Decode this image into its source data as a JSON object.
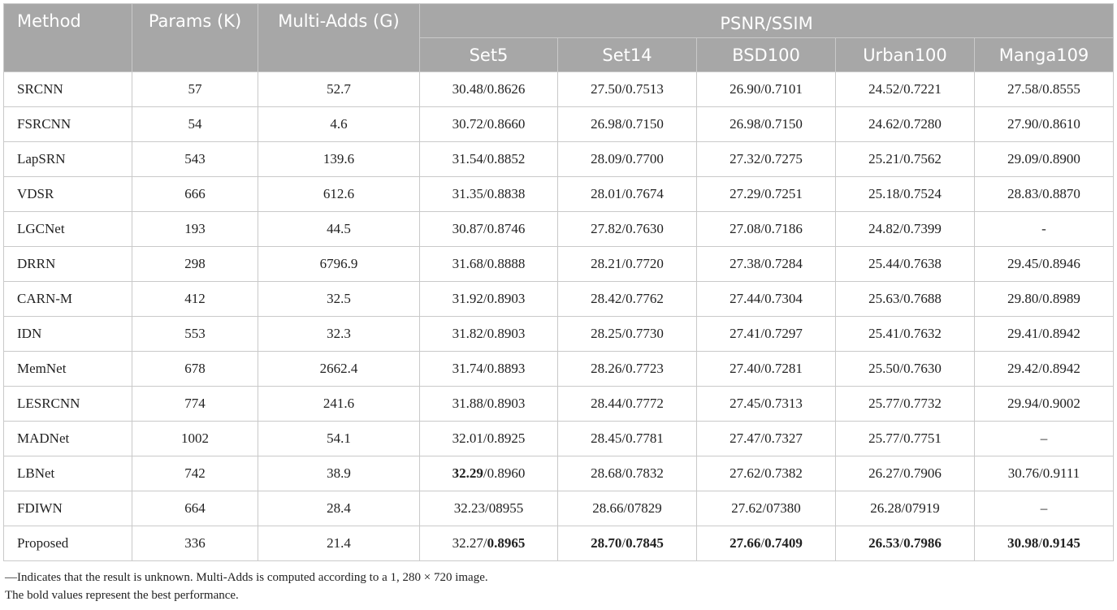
{
  "headers": {
    "method": "Method",
    "params": "Params (K)",
    "multiadds": "Multi-Adds (G)",
    "group": "PSNR/SSIM",
    "datasets": [
      "Set5",
      "Set14",
      "BSD100",
      "Urban100",
      "Manga109"
    ]
  },
  "rows": [
    {
      "method": "SRCNN",
      "params": "57",
      "multiadds": "52.7",
      "cells": [
        {
          "psnr": "30.48",
          "ssim": "0.8626"
        },
        {
          "psnr": "27.50",
          "ssim": "0.7513"
        },
        {
          "psnr": "26.90",
          "ssim": "0.7101"
        },
        {
          "psnr": "24.52",
          "ssim": "0.7221"
        },
        {
          "psnr": "27.58",
          "ssim": "0.8555"
        }
      ]
    },
    {
      "method": "FSRCNN",
      "params": "54",
      "multiadds": "4.6",
      "cells": [
        {
          "psnr": "30.72",
          "ssim": "0.8660"
        },
        {
          "psnr": "26.98",
          "ssim": "0.7150"
        },
        {
          "psnr": "26.98",
          "ssim": "0.7150"
        },
        {
          "psnr": "24.62",
          "ssim": "0.7280"
        },
        {
          "psnr": "27.90",
          "ssim": "0.8610"
        }
      ]
    },
    {
      "method": "LapSRN",
      "params": "543",
      "multiadds": "139.6",
      "cells": [
        {
          "psnr": "31.54",
          "ssim": "0.8852"
        },
        {
          "psnr": "28.09",
          "ssim": "0.7700"
        },
        {
          "psnr": "27.32",
          "ssim": "0.7275"
        },
        {
          "psnr": "25.21",
          "ssim": "0.7562"
        },
        {
          "psnr": "29.09",
          "ssim": "0.8900"
        }
      ]
    },
    {
      "method": "VDSR",
      "params": "666",
      "multiadds": "612.6",
      "cells": [
        {
          "psnr": "31.35",
          "ssim": "0.8838"
        },
        {
          "psnr": "28.01",
          "ssim": "0.7674"
        },
        {
          "psnr": "27.29",
          "ssim": "0.7251"
        },
        {
          "psnr": "25.18",
          "ssim": "0.7524"
        },
        {
          "psnr": "28.83",
          "ssim": "0.8870"
        }
      ]
    },
    {
      "method": "LGCNet",
      "params": "193",
      "multiadds": "44.5",
      "cells": [
        {
          "psnr": "30.87",
          "ssim": "0.8746"
        },
        {
          "psnr": "27.82",
          "ssim": "0.7630"
        },
        {
          "psnr": "27.08",
          "ssim": "0.7186"
        },
        {
          "psnr": "24.82",
          "ssim": "0.7399"
        },
        {
          "text": "-"
        }
      ]
    },
    {
      "method": "DRRN",
      "params": "298",
      "multiadds": "6796.9",
      "cells": [
        {
          "psnr": "31.68",
          "ssim": "0.8888"
        },
        {
          "psnr": "28.21",
          "ssim": "0.7720"
        },
        {
          "psnr": "27.38",
          "ssim": "0.7284"
        },
        {
          "psnr": "25.44",
          "ssim": "0.7638"
        },
        {
          "psnr": "29.45",
          "ssim": "0.8946"
        }
      ]
    },
    {
      "method": "CARN-M",
      "params": "412",
      "multiadds": "32.5",
      "cells": [
        {
          "psnr": "31.92",
          "ssim": "0.8903"
        },
        {
          "psnr": "28.42",
          "ssim": "0.7762"
        },
        {
          "psnr": "27.44",
          "ssim": "0.7304"
        },
        {
          "psnr": "25.63",
          "ssim": "0.7688"
        },
        {
          "psnr": "29.80",
          "ssim": "0.8989"
        }
      ]
    },
    {
      "method": "IDN",
      "params": "553",
      "multiadds": "32.3",
      "cells": [
        {
          "psnr": "31.82",
          "ssim": "0.8903"
        },
        {
          "psnr": "28.25",
          "ssim": "0.7730"
        },
        {
          "psnr": "27.41",
          "ssim": "0.7297"
        },
        {
          "psnr": "25.41",
          "ssim": "0.7632"
        },
        {
          "psnr": "29.41",
          "ssim": "0.8942"
        }
      ]
    },
    {
      "method": "MemNet",
      "params": "678",
      "multiadds": "2662.4",
      "cells": [
        {
          "psnr": "31.74",
          "ssim": "0.8893"
        },
        {
          "psnr": "28.26",
          "ssim": "0.7723"
        },
        {
          "psnr": "27.40",
          "ssim": "0.7281"
        },
        {
          "psnr": "25.50",
          "ssim": "0.7630"
        },
        {
          "psnr": "29.42",
          "ssim": "0.8942"
        }
      ]
    },
    {
      "method": "LESRCNN",
      "params": "774",
      "multiadds": "241.6",
      "cells": [
        {
          "psnr": "31.88",
          "ssim": "0.8903"
        },
        {
          "psnr": "28.44",
          "ssim": "0.7772"
        },
        {
          "psnr": "27.45",
          "ssim": "0.7313"
        },
        {
          "psnr": "25.77",
          "ssim": "0.7732"
        },
        {
          "psnr": "29.94",
          "ssim": "0.9002"
        }
      ]
    },
    {
      "method": "MADNet",
      "params": "1002",
      "multiadds": "54.1",
      "cells": [
        {
          "psnr": "32.01",
          "ssim": "0.8925"
        },
        {
          "psnr": "28.45",
          "ssim": "0.7781"
        },
        {
          "psnr": "27.47",
          "ssim": "0.7327"
        },
        {
          "psnr": "25.77",
          "ssim": "0.7751"
        },
        {
          "text": "–"
        }
      ]
    },
    {
      "method": "LBNet",
      "params": "742",
      "multiadds": "38.9",
      "cells": [
        {
          "psnr": "32.29",
          "ssim": "0.8960",
          "bold_psnr": true
        },
        {
          "psnr": "28.68",
          "ssim": "0.7832"
        },
        {
          "psnr": "27.62",
          "ssim": "0.7382"
        },
        {
          "psnr": "26.27",
          "ssim": "0.7906"
        },
        {
          "psnr": "30.76",
          "ssim": "0.9111"
        }
      ]
    },
    {
      "method": "FDIWN",
      "params": "664",
      "multiadds": "28.4",
      "cells": [
        {
          "psnr": "32.23",
          "ssim": "08955"
        },
        {
          "psnr": "28.66",
          "ssim": "07829"
        },
        {
          "psnr": "27.62",
          "ssim": "07380"
        },
        {
          "psnr": "26.28",
          "ssim": "07919"
        },
        {
          "text": "–"
        }
      ]
    },
    {
      "method": "Proposed",
      "params": "336",
      "multiadds": "21.4",
      "cells": [
        {
          "psnr": "32.27",
          "ssim": "0.8965",
          "bold_ssim": true
        },
        {
          "psnr": "28.70",
          "ssim": "0.7845",
          "bold_psnr": true,
          "bold_ssim": true
        },
        {
          "psnr": "27.66",
          "ssim": "0.7409",
          "bold_psnr": true,
          "bold_ssim": true
        },
        {
          "psnr": "26.53",
          "ssim": "0.7986",
          "bold_psnr": true,
          "bold_ssim": true
        },
        {
          "psnr": "30.98",
          "ssim": "0.9145",
          "bold_psnr": true,
          "bold_ssim": true
        }
      ]
    }
  ],
  "notes": [
    "—Indicates that the result is unknown. Multi-Adds is computed according to a 1, 280 × 720 image.",
    "The bold values represent the best performance."
  ],
  "colors": {
    "header_bg": "#a7a7a7",
    "header_text": "#ffffff",
    "border": "#c9c9c9"
  }
}
